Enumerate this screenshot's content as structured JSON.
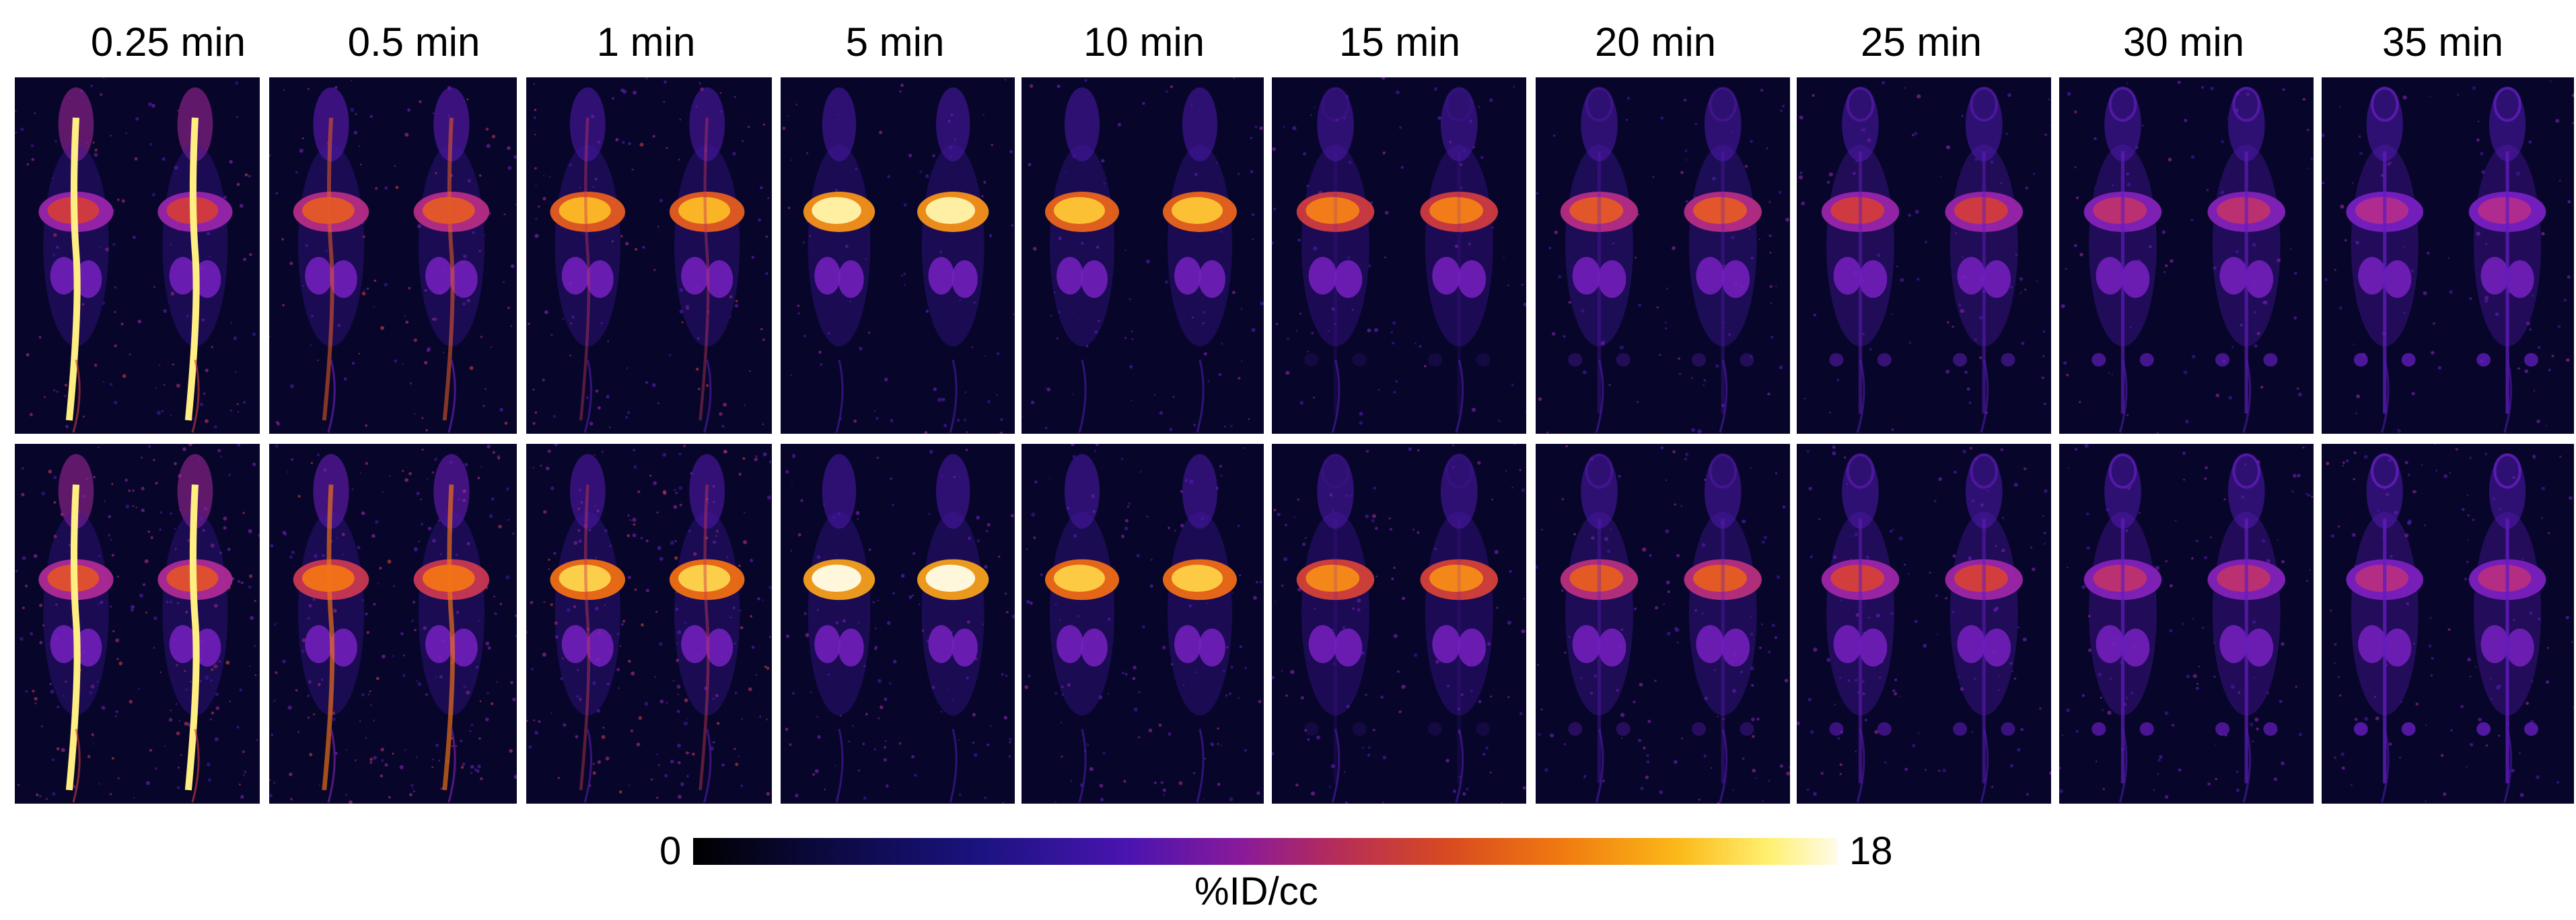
{
  "time_points": [
    "0.25 min",
    "0.5 min",
    "1 min",
    "5 min",
    "10 min",
    "15 min",
    "20 min",
    "25 min",
    "30 min",
    "35 min"
  ],
  "rows": [
    {
      "intensity": [
        0.55,
        0.62,
        0.8,
        0.92,
        0.82,
        0.7,
        0.62,
        0.55,
        0.5,
        0.47
      ],
      "vessel": [
        1,
        0.3,
        0.05,
        0,
        0,
        0,
        0,
        0,
        0,
        0
      ],
      "noise": 0.25,
      "skeleton": [
        0,
        0,
        0,
        0,
        0,
        0.15,
        0.3,
        0.5,
        0.65,
        0.75
      ]
    },
    {
      "intensity": [
        0.6,
        0.68,
        0.85,
        0.95,
        0.84,
        0.72,
        0.63,
        0.56,
        0.5,
        0.48
      ],
      "vessel": [
        1,
        0.45,
        0.08,
        0,
        0,
        0,
        0,
        0,
        0,
        0
      ],
      "noise": 0.7,
      "skeleton": [
        0,
        0,
        0,
        0,
        0,
        0.15,
        0.35,
        0.55,
        0.7,
        0.8
      ]
    }
  ],
  "colorbar": {
    "min_label": "0",
    "max_label": "18",
    "unit_label": "%ID/cc",
    "colors": [
      "#000000",
      "#1a1380",
      "#8a1a9a",
      "#d84a20",
      "#fbb818",
      "#fffbe8"
    ]
  }
}
